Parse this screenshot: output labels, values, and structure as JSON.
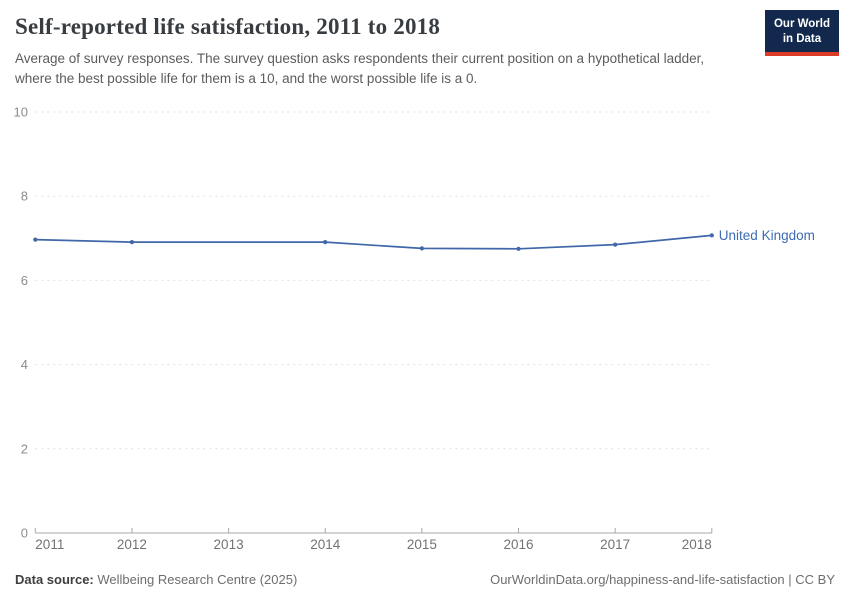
{
  "header": {
    "title": "Self-reported life satisfaction, 2011 to 2018",
    "subtitle": "Average of survey responses. The survey question asks respondents their current position on a hypothetical ladder, where the best possible life for them is a 10, and the worst possible life is a 0.",
    "logo": {
      "line1": "Our World",
      "line2": "in Data",
      "bg_color": "#12294d",
      "stripe_color": "#dc3b28"
    }
  },
  "chart_data": {
    "type": "line",
    "title": "Self-reported life satisfaction, 2011 to 2018",
    "xlim": [
      2011,
      2018
    ],
    "ylim": [
      0,
      10
    ],
    "yticks": [
      0,
      2,
      4,
      6,
      8,
      10
    ],
    "xticks": [
      2011,
      2012,
      2013,
      2014,
      2015,
      2016,
      2017,
      2018
    ],
    "grid": "dashed-horizontal",
    "legend_position": "end-of-line-label",
    "missing_years": [
      2013
    ],
    "series": [
      {
        "name": "United Kingdom",
        "points": [
          {
            "year": 2011,
            "value": 6.97
          },
          {
            "year": 2012,
            "value": 6.91
          },
          {
            "year": 2014,
            "value": 6.91
          },
          {
            "year": 2015,
            "value": 6.76
          },
          {
            "year": 2016,
            "value": 6.75
          },
          {
            "year": 2017,
            "value": 6.85
          },
          {
            "year": 2018,
            "value": 7.07
          }
        ]
      }
    ],
    "colors": {
      "line": "#4167a9",
      "entity_label": "#3d6cb2",
      "grid": "#e0e0e0",
      "axis": "#a8a8a8",
      "y_tick_label": "#8c8c8c",
      "x_tick_label": "#737373"
    }
  },
  "footer": {
    "data_source_label": "Data source:",
    "data_source_value": "Wellbeing Research Centre (2025)",
    "attribution": "OurWorldinData.org/happiness-and-life-satisfaction | CC BY"
  }
}
